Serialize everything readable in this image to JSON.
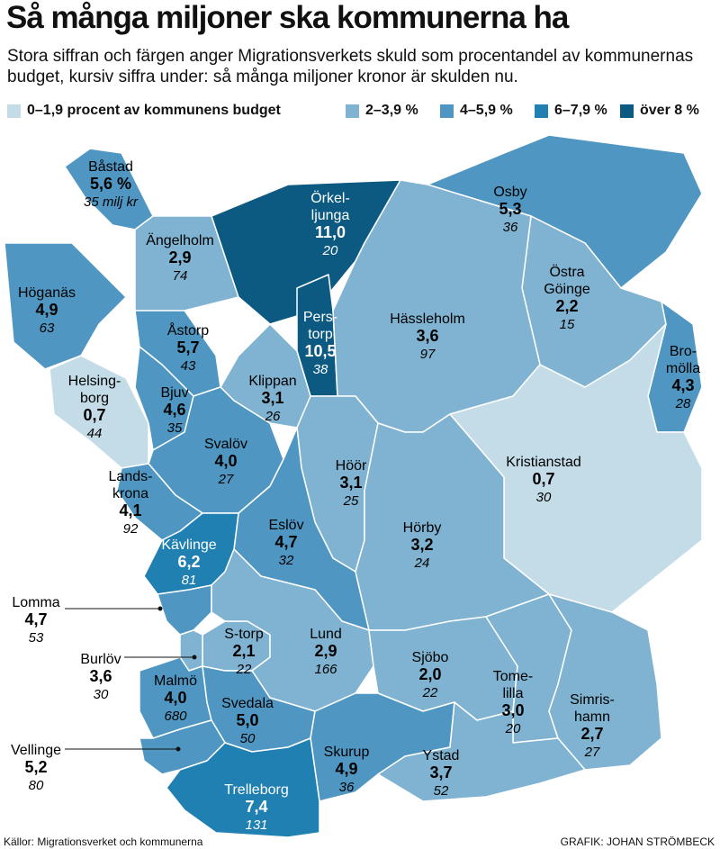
{
  "header": {
    "title": "Så många miljoner ska kommunerna ha",
    "subtitle": "Stora siffran och färgen anger Migrationsverkets skuld som procentandel av kommunernas budget, kursiv siffra under: så många miljoner kronor är skulden nu."
  },
  "legend": [
    {
      "label": "0–1,9 procent av kommunens budget",
      "color": "#c4dce8"
    },
    {
      "label": "2–3,9 %",
      "color": "#7fb3d1"
    },
    {
      "label": "4–5,9 %",
      "color": "#4f97c2"
    },
    {
      "label": "6–7,9 %",
      "color": "#2080b2"
    },
    {
      "label": "över 8 %",
      "color": "#0c5a82"
    }
  ],
  "municipalities": [
    {
      "name_lines": [
        "Båstad"
      ],
      "percent": "5,6 %",
      "debt": "35 milj kr",
      "color": "#4f97c2"
    },
    {
      "name_lines": [
        "Ängelholm"
      ],
      "percent": "2,9",
      "debt": "74",
      "color": "#7fb3d1"
    },
    {
      "name_lines": [
        "Örkel-",
        "ljunga"
      ],
      "percent": "11,0",
      "debt": "20",
      "color": "#0c5a82"
    },
    {
      "name_lines": [
        "Osby"
      ],
      "percent": "5,3",
      "debt": "36",
      "color": "#4f97c2"
    },
    {
      "name_lines": [
        "Östra",
        "Göinge"
      ],
      "percent": "2,2",
      "debt": "15",
      "color": "#7fb3d1"
    },
    {
      "name_lines": [
        "Höganäs"
      ],
      "percent": "4,9",
      "debt": "63",
      "color": "#4f97c2"
    },
    {
      "name_lines": [
        "Pers-",
        "torp"
      ],
      "percent": "10,5",
      "debt": "38",
      "color": "#0c5a82"
    },
    {
      "name_lines": [
        "Hässleholm"
      ],
      "percent": "3,6",
      "debt": "97",
      "color": "#7fb3d1"
    },
    {
      "name_lines": [
        "Åstorp"
      ],
      "percent": "5,7",
      "debt": "43",
      "color": "#4f97c2"
    },
    {
      "name_lines": [
        "Bro-",
        "mölla"
      ],
      "percent": "4,3",
      "debt": "28",
      "color": "#4f97c2"
    },
    {
      "name_lines": [
        "Helsing-",
        "borg"
      ],
      "percent": "0,7",
      "debt": "44",
      "color": "#c4dce8"
    },
    {
      "name_lines": [
        "Bjuv"
      ],
      "percent": "4,6",
      "debt": "35",
      "color": "#4f97c2"
    },
    {
      "name_lines": [
        "Klippan"
      ],
      "percent": "3,1",
      "debt": "26",
      "color": "#7fb3d1"
    },
    {
      "name_lines": [
        "Svalöv"
      ],
      "percent": "4,0",
      "debt": "27",
      "color": "#4f97c2"
    },
    {
      "name_lines": [
        "Höör"
      ],
      "percent": "3,1",
      "debt": "25",
      "color": "#7fb3d1"
    },
    {
      "name_lines": [
        "Kristianstad"
      ],
      "percent": "0,7",
      "debt": "30",
      "color": "#c4dce8"
    },
    {
      "name_lines": [
        "Lands-",
        "krona"
      ],
      "percent": "4,1",
      "debt": "92",
      "color": "#4f97c2"
    },
    {
      "name_lines": [
        "Eslöv"
      ],
      "percent": "4,7",
      "debt": "32",
      "color": "#4f97c2"
    },
    {
      "name_lines": [
        "Hörby"
      ],
      "percent": "3,2",
      "debt": "24",
      "color": "#7fb3d1"
    },
    {
      "name_lines": [
        "Kävlinge"
      ],
      "percent": "6,2",
      "debt": "81",
      "color": "#2080b2"
    },
    {
      "name_lines": [
        "Lomma"
      ],
      "percent": "4,7",
      "debt": "53",
      "color": "#4f97c2"
    },
    {
      "name_lines": [
        "S-torp"
      ],
      "percent": "2,1",
      "debt": "22",
      "color": "#7fb3d1"
    },
    {
      "name_lines": [
        "Lund"
      ],
      "percent": "2,9",
      "debt": "166",
      "color": "#7fb3d1"
    },
    {
      "name_lines": [
        "Sjöbo"
      ],
      "percent": "2,0",
      "debt": "22",
      "color": "#7fb3d1"
    },
    {
      "name_lines": [
        "Burlöv"
      ],
      "percent": "3,6",
      "debt": "30",
      "color": "#7fb3d1"
    },
    {
      "name_lines": [
        "Tome-",
        "lilla"
      ],
      "percent": "3,0",
      "debt": "20",
      "color": "#7fb3d1"
    },
    {
      "name_lines": [
        "Malmö"
      ],
      "percent": "4,0",
      "debt": "680",
      "color": "#4f97c2"
    },
    {
      "name_lines": [
        "Simris-",
        "hamn"
      ],
      "percent": "2,7",
      "debt": "27",
      "color": "#7fb3d1"
    },
    {
      "name_lines": [
        "Svedala"
      ],
      "percent": "5,0",
      "debt": "50",
      "color": "#4f97c2"
    },
    {
      "name_lines": [
        "Vellinge"
      ],
      "percent": "5,2",
      "debt": "80",
      "color": "#4f97c2"
    },
    {
      "name_lines": [
        "Skurup"
      ],
      "percent": "4,9",
      "debt": "36",
      "color": "#4f97c2"
    },
    {
      "name_lines": [
        "Ystad"
      ],
      "percent": "3,7",
      "debt": "52",
      "color": "#7fb3d1"
    },
    {
      "name_lines": [
        "Trelleborg"
      ],
      "percent": "7,4",
      "debt": "131",
      "color": "#2080b2"
    }
  ],
  "footer": {
    "source": "Källor: Migrationsverket och kommunerna",
    "credit": "GRAFIK: JOHAN STRÖMBECK"
  }
}
